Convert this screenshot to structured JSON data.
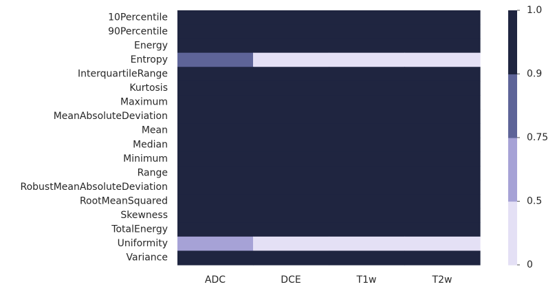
{
  "chart_data": {
    "type": "heatmap",
    "rows": [
      "10Percentile",
      "90Percentile",
      "Energy",
      "Entropy",
      "InterquartileRange",
      "Kurtosis",
      "Maximum",
      "MeanAbsoluteDeviation",
      "Mean",
      "Median",
      "Minimum",
      "Range",
      "RobustMeanAbsoluteDeviation",
      "RootMeanSquared",
      "Skewness",
      "TotalEnergy",
      "Uniformity",
      "Variance"
    ],
    "columns": [
      "ADC",
      "DCE",
      "T1w",
      "T2w"
    ],
    "values": [
      [
        1,
        1,
        1,
        1
      ],
      [
        1,
        1,
        1,
        1
      ],
      [
        1,
        1,
        1,
        1
      ],
      [
        0.8,
        0,
        0,
        0
      ],
      [
        1,
        1,
        1,
        1
      ],
      [
        1,
        1,
        1,
        1
      ],
      [
        1,
        1,
        1,
        1
      ],
      [
        1,
        1,
        1,
        1
      ],
      [
        1,
        1,
        1,
        1
      ],
      [
        1,
        1,
        1,
        1
      ],
      [
        1,
        1,
        1,
        1
      ],
      [
        1,
        1,
        1,
        1
      ],
      [
        1,
        1,
        1,
        1
      ],
      [
        1,
        1,
        1,
        1
      ],
      [
        1,
        1,
        1,
        1
      ],
      [
        1,
        1,
        1,
        1
      ],
      [
        0.6,
        0,
        0,
        0
      ],
      [
        1,
        1,
        1,
        1
      ]
    ],
    "colorbar": {
      "bins": [
        {
          "from": 0,
          "to": 0.5,
          "color": "#e4e0f5"
        },
        {
          "from": 0.5,
          "to": 0.75,
          "color": "#a6a2d6"
        },
        {
          "from": 0.75,
          "to": 0.9,
          "color": "#5e6498"
        },
        {
          "from": 0.9,
          "to": 1.0,
          "color": "#1f2540"
        }
      ],
      "ticks": [
        "0",
        "0.5",
        "0.75",
        "0.9",
        "1.0"
      ]
    }
  }
}
